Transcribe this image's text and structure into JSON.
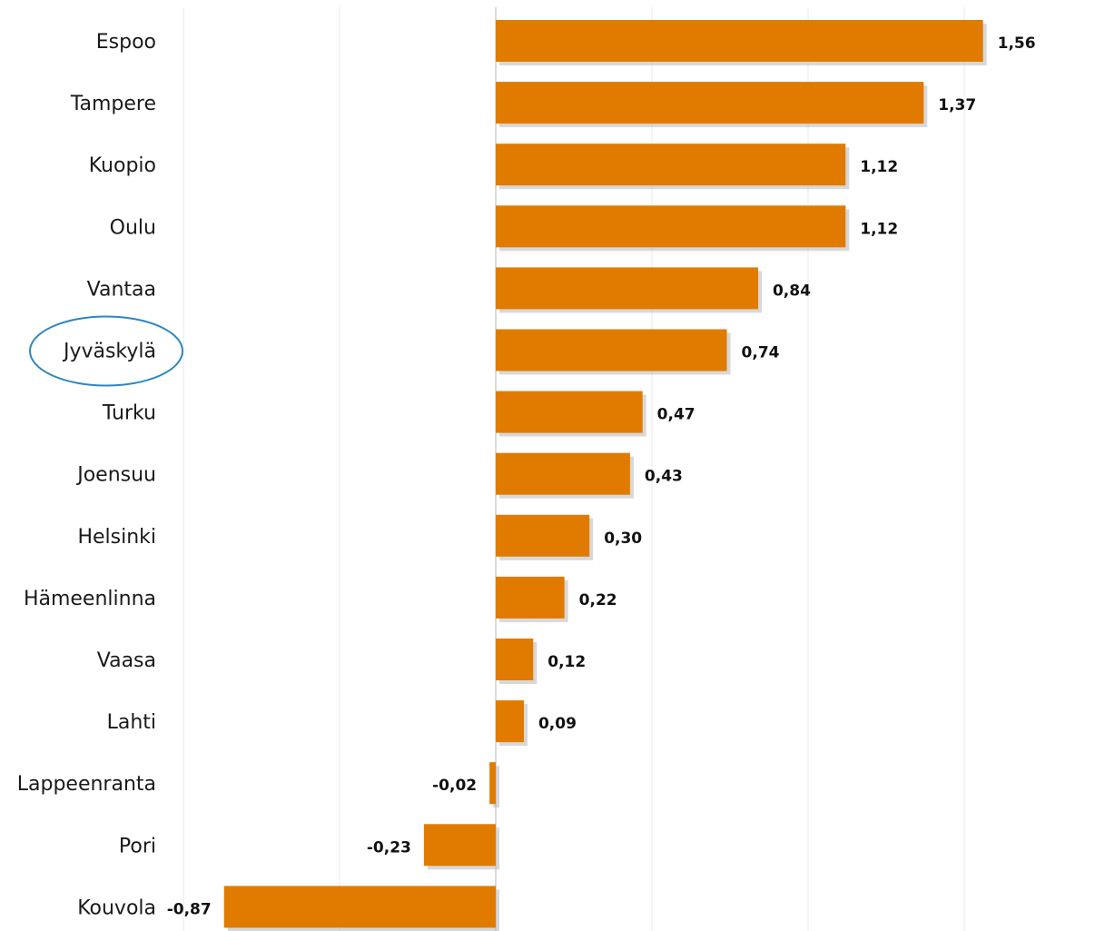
{
  "chart_data": {
    "type": "bar",
    "orientation": "horizontal",
    "categories": [
      "Espoo",
      "Tampere",
      "Kuopio",
      "Oulu",
      "Vantaa",
      "Jyväskylä",
      "Turku",
      "Joensuu",
      "Helsinki",
      "Hämeenlinna",
      "Vaasa",
      "Lahti",
      "Lappeenranta",
      "Pori",
      "Kouvola"
    ],
    "values": [
      1.56,
      1.37,
      1.12,
      1.12,
      0.84,
      0.74,
      0.47,
      0.43,
      0.3,
      0.22,
      0.12,
      0.09,
      -0.02,
      -0.23,
      -0.87
    ],
    "value_labels": [
      "1,56",
      "1,37",
      "1,12",
      "1,12",
      "0,84",
      "0,74",
      "0,47",
      "0,43",
      "0,30",
      "0,22",
      "0,12",
      "0,09",
      "-0,02",
      "-0,23",
      "-0,87"
    ],
    "highlighted_category": "Jyväskylä",
    "xlim": [
      -1.0,
      1.5
    ],
    "gridlines": true,
    "legend": "none",
    "colors": {
      "bar": "#E07B00",
      "bar_shadow": "#b8b8b8",
      "highlight_ellipse": "#2E86C1",
      "gridline": "#e8e8e8",
      "axis_line": "#cfcfcf"
    }
  }
}
